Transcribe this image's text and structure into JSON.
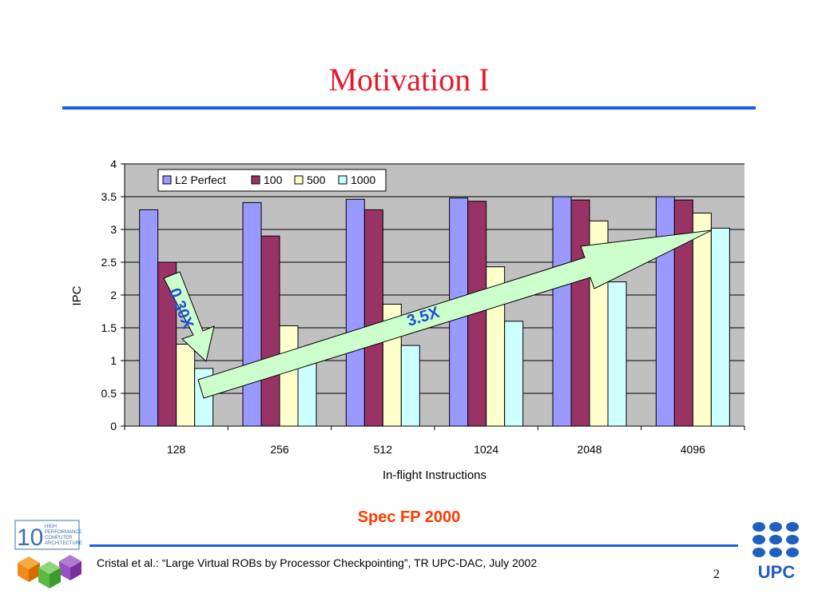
{
  "slide": {
    "title": "Motivation I",
    "subtitle": "Spec FP 2000",
    "citation": "Cristal et al.: “Large Virtual ROBs by Processor Checkpointing”, TR UPC-DAC, July 2002",
    "page_number": "2",
    "logo_left": {
      "number": "10",
      "lines": [
        "HIGH",
        "PERFORMANCE",
        "COMPUTER",
        "ARCHITECTURE"
      ]
    },
    "logo_right": {
      "text": "UPC"
    }
  },
  "colors": {
    "title": "#e8192c",
    "rule": "#1a5ee6",
    "subtitle": "#ff3a00",
    "plot_bg": "#c0c0c0",
    "arrow_fill": "#ccffcc",
    "arrow_text": "#1f4fd8"
  },
  "chart_data": {
    "type": "bar",
    "categories": [
      "128",
      "256",
      "512",
      "1024",
      "2048",
      "4096"
    ],
    "series": [
      {
        "name": "L2 Perfect",
        "color": "#9999ff",
        "values": [
          3.3,
          3.41,
          3.46,
          3.48,
          3.5,
          3.5
        ]
      },
      {
        "name": "100",
        "color": "#993366",
        "values": [
          2.5,
          2.9,
          3.3,
          3.43,
          3.45,
          3.45
        ]
      },
      {
        "name": "500",
        "color": "#ffffcc",
        "values": [
          1.25,
          1.53,
          1.86,
          2.43,
          3.13,
          3.25
        ]
      },
      {
        "name": "1000",
        "color": "#ccffff",
        "values": [
          0.88,
          1.0,
          1.23,
          1.6,
          2.2,
          3.02
        ]
      }
    ],
    "xlabel": "In-flight Instructions",
    "ylabel": "IPC",
    "ylim": [
      0,
      4
    ],
    "yticks": [
      "0",
      "0.5",
      "1",
      "1.5",
      "2",
      "2.5",
      "3",
      "3.5",
      "4"
    ],
    "grid": true,
    "legend": "top-left",
    "annotations": [
      "0.30X",
      "3.5X"
    ]
  }
}
